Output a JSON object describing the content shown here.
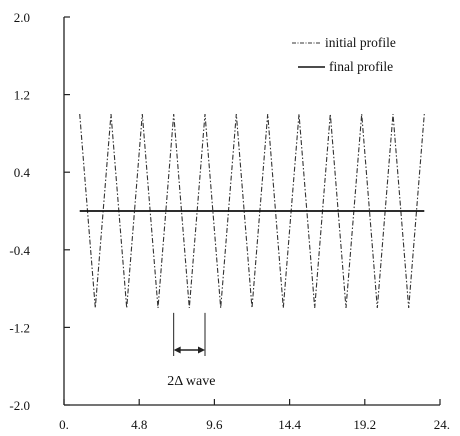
{
  "chart_data": {
    "type": "line",
    "title": "",
    "xlabel": "",
    "ylabel": "",
    "xlim": [
      0,
      24
    ],
    "ylim": [
      -2.0,
      2.0
    ],
    "x_ticks": [
      0,
      4.8,
      9.6,
      14.4,
      19.2,
      24
    ],
    "x_tick_labels": [
      "0.",
      "4.8",
      "9.6",
      "14.4",
      "19.2",
      "24."
    ],
    "y_ticks": [
      2.0,
      1.2,
      0.4,
      -0.4,
      -1.2,
      -2.0
    ],
    "y_tick_labels": [
      "2.0",
      "1.2",
      "0.4",
      "-0.4",
      "-1.2",
      "-2.0"
    ],
    "grid": false,
    "legend_position": "top-right",
    "series": [
      {
        "name": "initial profile",
        "style": "dash-dot",
        "color": "#333333",
        "x": [
          1.0,
          2.0,
          3.0,
          4.0,
          5.0,
          6.0,
          7.0,
          8.0,
          9.0,
          10.0,
          11.0,
          12.0,
          13.0,
          14.0,
          15.0,
          16.0,
          17.0,
          18.0,
          19.0,
          20.0,
          21.0,
          22.0,
          23.0
        ],
        "y": [
          1.0,
          -1.0,
          1.0,
          -1.0,
          1.0,
          -1.0,
          1.0,
          -1.0,
          1.0,
          -1.0,
          1.0,
          -1.0,
          1.0,
          -1.0,
          1.0,
          -1.0,
          1.0,
          -1.0,
          1.0,
          -1.0,
          1.0,
          -1.0,
          1.0
        ]
      },
      {
        "name": "final profile",
        "style": "solid",
        "color": "#111111",
        "x": [
          1.0,
          23.0
        ],
        "y": [
          0.0,
          0.0
        ]
      }
    ],
    "annotation": {
      "text": "2Δ  wave",
      "x_start": 7.0,
      "x_end": 9.0
    }
  }
}
